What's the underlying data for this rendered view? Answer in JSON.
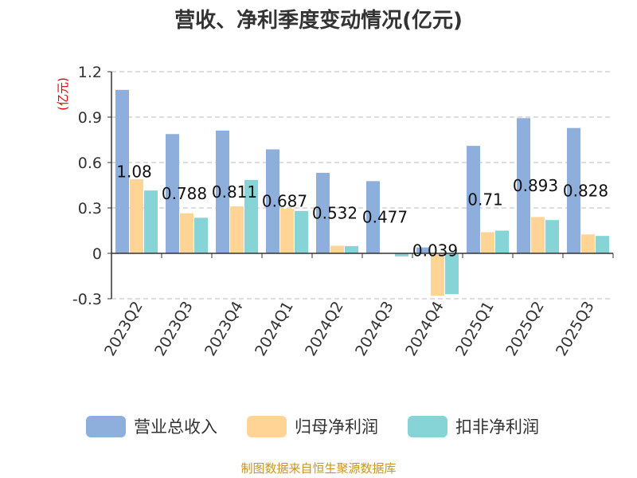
{
  "chart_data": {
    "type": "bar",
    "title": "营收、净利季度变动情况(亿元)",
    "unit": "(亿元)",
    "categories": [
      "2023Q2",
      "2023Q3",
      "2023Q4",
      "2024Q1",
      "2024Q2",
      "2024Q3",
      "2024Q4",
      "2025Q1",
      "2025Q2",
      "2025Q3"
    ],
    "ylim": [
      -0.3,
      1.2
    ],
    "yticks": [
      -0.3,
      0,
      0.3,
      0.6,
      0.9,
      1.2
    ],
    "ytick_labels": [
      "-0.3",
      "0",
      "0.3",
      "0.6",
      "0.9",
      "1.2"
    ],
    "grid": true,
    "legend_position": "bottom",
    "series": [
      {
        "name": "营业总收入",
        "color": "#8eaedb",
        "values": [
          1.08,
          0.788,
          0.811,
          0.687,
          0.532,
          0.477,
          0.039,
          0.71,
          0.893,
          0.828
        ]
      },
      {
        "name": "归母净利润",
        "color": "#ffd494",
        "values": [
          0.49,
          0.265,
          0.31,
          0.295,
          0.05,
          0.0,
          -0.28,
          0.14,
          0.24,
          0.125
        ]
      },
      {
        "name": "扣非净利润",
        "color": "#86d4d6",
        "values": [
          0.415,
          0.235,
          0.485,
          0.28,
          0.048,
          -0.02,
          -0.27,
          0.15,
          0.22,
          0.115
        ]
      }
    ],
    "data_labels": [
      "1.08",
      "0.788",
      "0.811",
      "0.687",
      "0.532",
      "0.477",
      "0.039",
      "0.71",
      "0.893",
      "0.828"
    ],
    "source": "制图数据来自恒生聚源数据库"
  }
}
